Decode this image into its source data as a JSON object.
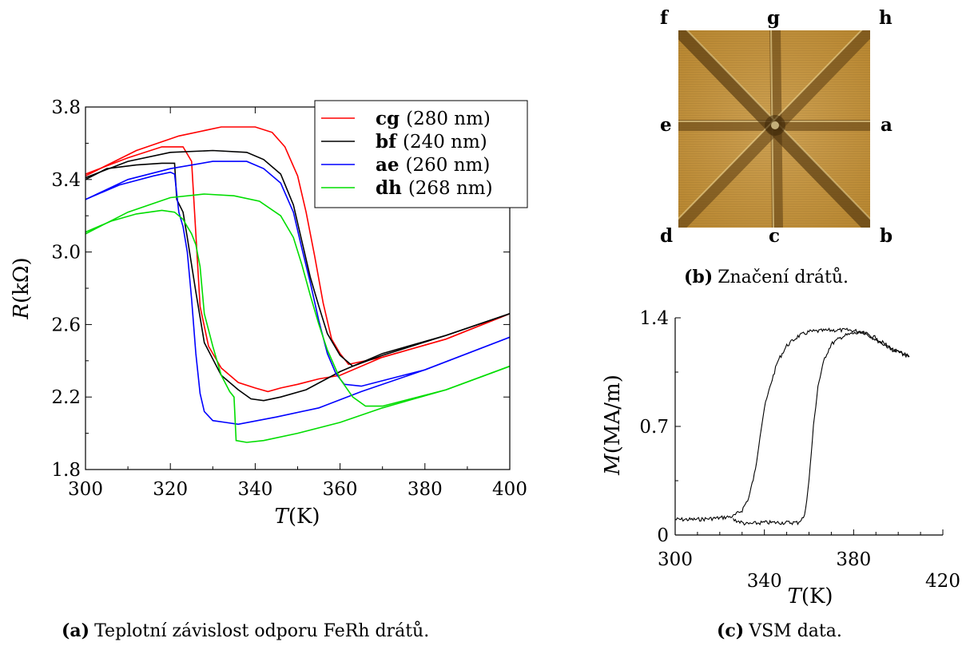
{
  "panel_a": {
    "caption_label": "(a)",
    "caption_text": "Teplotní závislost odporu FeRh drátů.",
    "ylabel_italic": "R",
    "ylabel_unit": "(kΩ)",
    "xlabel_italic": "T",
    "xlabel_unit": "(K)"
  },
  "panel_b": {
    "caption_label": "(b)",
    "caption_text": "Značení drátů.",
    "corner_labels": {
      "f": "f",
      "g": "g",
      "h": "h",
      "e": "e",
      "a": "a",
      "d": "d",
      "c": "c",
      "b": "b"
    }
  },
  "panel_c": {
    "caption_label": "(c)",
    "caption_text": "VSM data.",
    "ylabel_italic": "M",
    "ylabel_unit": "(MA/m)",
    "xlabel_italic": "T",
    "xlabel_unit": "(K)"
  },
  "chart_data": [
    {
      "type": "line",
      "xlim": [
        300,
        400
      ],
      "ylim": [
        1.8,
        3.8
      ],
      "xticks": [
        300,
        320,
        340,
        360,
        380,
        400
      ],
      "yticks": [
        1.8,
        2.2,
        2.6,
        3.0,
        3.4,
        3.8
      ],
      "ytick_labels": [
        "1.8",
        "2.2",
        "2.6",
        "3.0",
        "3.4",
        "3.8"
      ],
      "grid": false,
      "legend_position": "top-right",
      "series": [
        {
          "name": "cg",
          "size_label": "(280 nm)",
          "color": "#ff0000",
          "cooling": [
            [
              300,
              3.43
            ],
            [
              310,
              3.52
            ],
            [
              318,
              3.58
            ],
            [
              323,
              3.58
            ],
            [
              325,
              3.5
            ],
            [
              326,
              3.1
            ],
            [
              327,
              2.7
            ],
            [
              329,
              2.48
            ],
            [
              332,
              2.36
            ],
            [
              336,
              2.28
            ],
            [
              340,
              2.25
            ],
            [
              343,
              2.23
            ],
            [
              346,
              2.25
            ],
            [
              350,
              2.27
            ],
            [
              355,
              2.3
            ],
            [
              360,
              2.32
            ],
            [
              370,
              2.42
            ],
            [
              385,
              2.52
            ],
            [
              400,
              2.66
            ]
          ],
          "heating": [
            [
              300,
              3.42
            ],
            [
              312,
              3.56
            ],
            [
              322,
              3.64
            ],
            [
              332,
              3.69
            ],
            [
              340,
              3.69
            ],
            [
              344,
              3.66
            ],
            [
              347,
              3.58
            ],
            [
              350,
              3.42
            ],
            [
              352,
              3.22
            ],
            [
              354,
              2.98
            ],
            [
              356,
              2.72
            ],
            [
              358,
              2.52
            ],
            [
              360,
              2.44
            ],
            [
              362,
              2.38
            ],
            [
              370,
              2.42
            ],
            [
              385,
              2.52
            ],
            [
              400,
              2.66
            ]
          ]
        },
        {
          "name": "bf",
          "size_label": "(240 nm)",
          "color": "#000000",
          "cooling": [
            [
              300,
              3.4
            ],
            [
              305,
              3.46
            ],
            [
              312,
              3.48
            ],
            [
              318,
              3.49
            ],
            [
              321,
              3.49
            ],
            [
              321.5,
              3.29
            ],
            [
              323,
              3.22
            ],
            [
              324,
              3.08
            ],
            [
              326,
              2.78
            ],
            [
              328,
              2.5
            ],
            [
              332,
              2.32
            ],
            [
              336,
              2.24
            ],
            [
              339,
              2.19
            ],
            [
              342,
              2.18
            ],
            [
              346,
              2.2
            ],
            [
              352,
              2.24
            ],
            [
              360,
              2.34
            ],
            [
              370,
              2.44
            ],
            [
              385,
              2.54
            ],
            [
              400,
              2.66
            ]
          ],
          "heating": [
            [
              300,
              3.41
            ],
            [
              310,
              3.5
            ],
            [
              320,
              3.55
            ],
            [
              330,
              3.56
            ],
            [
              338,
              3.55
            ],
            [
              342,
              3.51
            ],
            [
              346,
              3.43
            ],
            [
              349,
              3.26
            ],
            [
              351,
              3.06
            ],
            [
              353,
              2.86
            ],
            [
              355,
              2.7
            ],
            [
              357,
              2.55
            ],
            [
              360,
              2.43
            ],
            [
              363,
              2.37
            ],
            [
              370,
              2.43
            ],
            [
              385,
              2.54
            ],
            [
              400,
              2.66
            ]
          ]
        },
        {
          "name": "ae",
          "size_label": "(260 nm)",
          "color": "#0000ff",
          "cooling": [
            [
              300,
              3.29
            ],
            [
              308,
              3.37
            ],
            [
              316,
              3.42
            ],
            [
              320,
              3.44
            ],
            [
              321,
              3.43
            ],
            [
              322,
              3.22
            ],
            [
              323,
              3.14
            ],
            [
              324,
              3.0
            ],
            [
              325,
              2.74
            ],
            [
              326,
              2.44
            ],
            [
              327,
              2.22
            ],
            [
              328,
              2.12
            ],
            [
              330,
              2.07
            ],
            [
              333,
              2.06
            ],
            [
              336,
              2.05
            ],
            [
              345,
              2.09
            ],
            [
              355,
              2.14
            ],
            [
              365,
              2.23
            ],
            [
              380,
              2.35
            ],
            [
              400,
              2.53
            ]
          ],
          "heating": [
            [
              300,
              3.29
            ],
            [
              310,
              3.4
            ],
            [
              320,
              3.46
            ],
            [
              330,
              3.5
            ],
            [
              338,
              3.5
            ],
            [
              342,
              3.46
            ],
            [
              346,
              3.38
            ],
            [
              349,
              3.22
            ],
            [
              351,
              3.02
            ],
            [
              353,
              2.83
            ],
            [
              355,
              2.62
            ],
            [
              357,
              2.44
            ],
            [
              359,
              2.33
            ],
            [
              361,
              2.27
            ],
            [
              365,
              2.26
            ],
            [
              380,
              2.35
            ],
            [
              400,
              2.53
            ]
          ]
        },
        {
          "name": "dh",
          "size_label": "(268 nm)",
          "color": "#00dd00",
          "cooling": [
            [
              300,
              3.11
            ],
            [
              306,
              3.17
            ],
            [
              312,
              3.21
            ],
            [
              318,
              3.23
            ],
            [
              321,
              3.22
            ],
            [
              323,
              3.18
            ],
            [
              324,
              3.14
            ],
            [
              325,
              3.1
            ],
            [
              326,
              3.04
            ],
            [
              327,
              2.92
            ],
            [
              328,
              2.66
            ],
            [
              330,
              2.48
            ],
            [
              332,
              2.32
            ],
            [
              334,
              2.23
            ],
            [
              335,
              2.2
            ],
            [
              335.5,
              1.96
            ],
            [
              338,
              1.95
            ],
            [
              342,
              1.96
            ],
            [
              350,
              2.0
            ],
            [
              360,
              2.06
            ],
            [
              370,
              2.14
            ],
            [
              385,
              2.24
            ],
            [
              400,
              2.37
            ]
          ],
          "heating": [
            [
              300,
              3.1
            ],
            [
              310,
              3.22
            ],
            [
              320,
              3.3
            ],
            [
              328,
              3.32
            ],
            [
              335,
              3.31
            ],
            [
              341,
              3.28
            ],
            [
              346,
              3.2
            ],
            [
              349,
              3.08
            ],
            [
              351,
              2.93
            ],
            [
              353,
              2.76
            ],
            [
              355,
              2.6
            ],
            [
              357,
              2.46
            ],
            [
              360,
              2.3
            ],
            [
              363,
              2.2
            ],
            [
              366,
              2.15
            ],
            [
              370,
              2.15
            ],
            [
              385,
              2.24
            ],
            [
              400,
              2.37
            ]
          ]
        }
      ]
    },
    {
      "type": "line",
      "xlim": [
        300,
        420
      ],
      "ylim": [
        0,
        1.4
      ],
      "xticks": [
        300,
        340,
        380,
        420
      ],
      "xticks_top_row": [
        300,
        380
      ],
      "xticks_bottom_row": [
        340,
        420
      ],
      "yticks": [
        0,
        0.7,
        1.4
      ],
      "ytick_labels": [
        "0",
        "0.7",
        "1.4"
      ],
      "grid": false,
      "series": [
        {
          "color": "#000000",
          "cooling": [
            [
              300,
              0.1
            ],
            [
              310,
              0.1
            ],
            [
              320,
              0.11
            ],
            [
              326,
              0.12
            ],
            [
              330,
              0.16
            ],
            [
              333,
              0.24
            ],
            [
              336,
              0.42
            ],
            [
              338,
              0.64
            ],
            [
              340,
              0.82
            ],
            [
              343,
              0.98
            ],
            [
              346,
              1.12
            ],
            [
              350,
              1.22
            ],
            [
              355,
              1.28
            ],
            [
              360,
              1.31
            ],
            [
              370,
              1.32
            ],
            [
              378,
              1.32
            ],
            [
              384,
              1.31
            ],
            [
              390,
              1.26
            ],
            [
              398,
              1.19
            ],
            [
              405,
              1.15
            ]
          ],
          "heating": [
            [
              326,
              0.1
            ],
            [
              332,
              0.07
            ],
            [
              340,
              0.08
            ],
            [
              350,
              0.08
            ],
            [
              355,
              0.08
            ],
            [
              358,
              0.12
            ],
            [
              360,
              0.35
            ],
            [
              362,
              0.7
            ],
            [
              364,
              0.96
            ],
            [
              367,
              1.14
            ],
            [
              370,
              1.23
            ],
            [
              375,
              1.28
            ],
            [
              380,
              1.3
            ],
            [
              385,
              1.3
            ],
            [
              390,
              1.27
            ],
            [
              398,
              1.19
            ],
            [
              405,
              1.15
            ]
          ]
        }
      ]
    }
  ]
}
